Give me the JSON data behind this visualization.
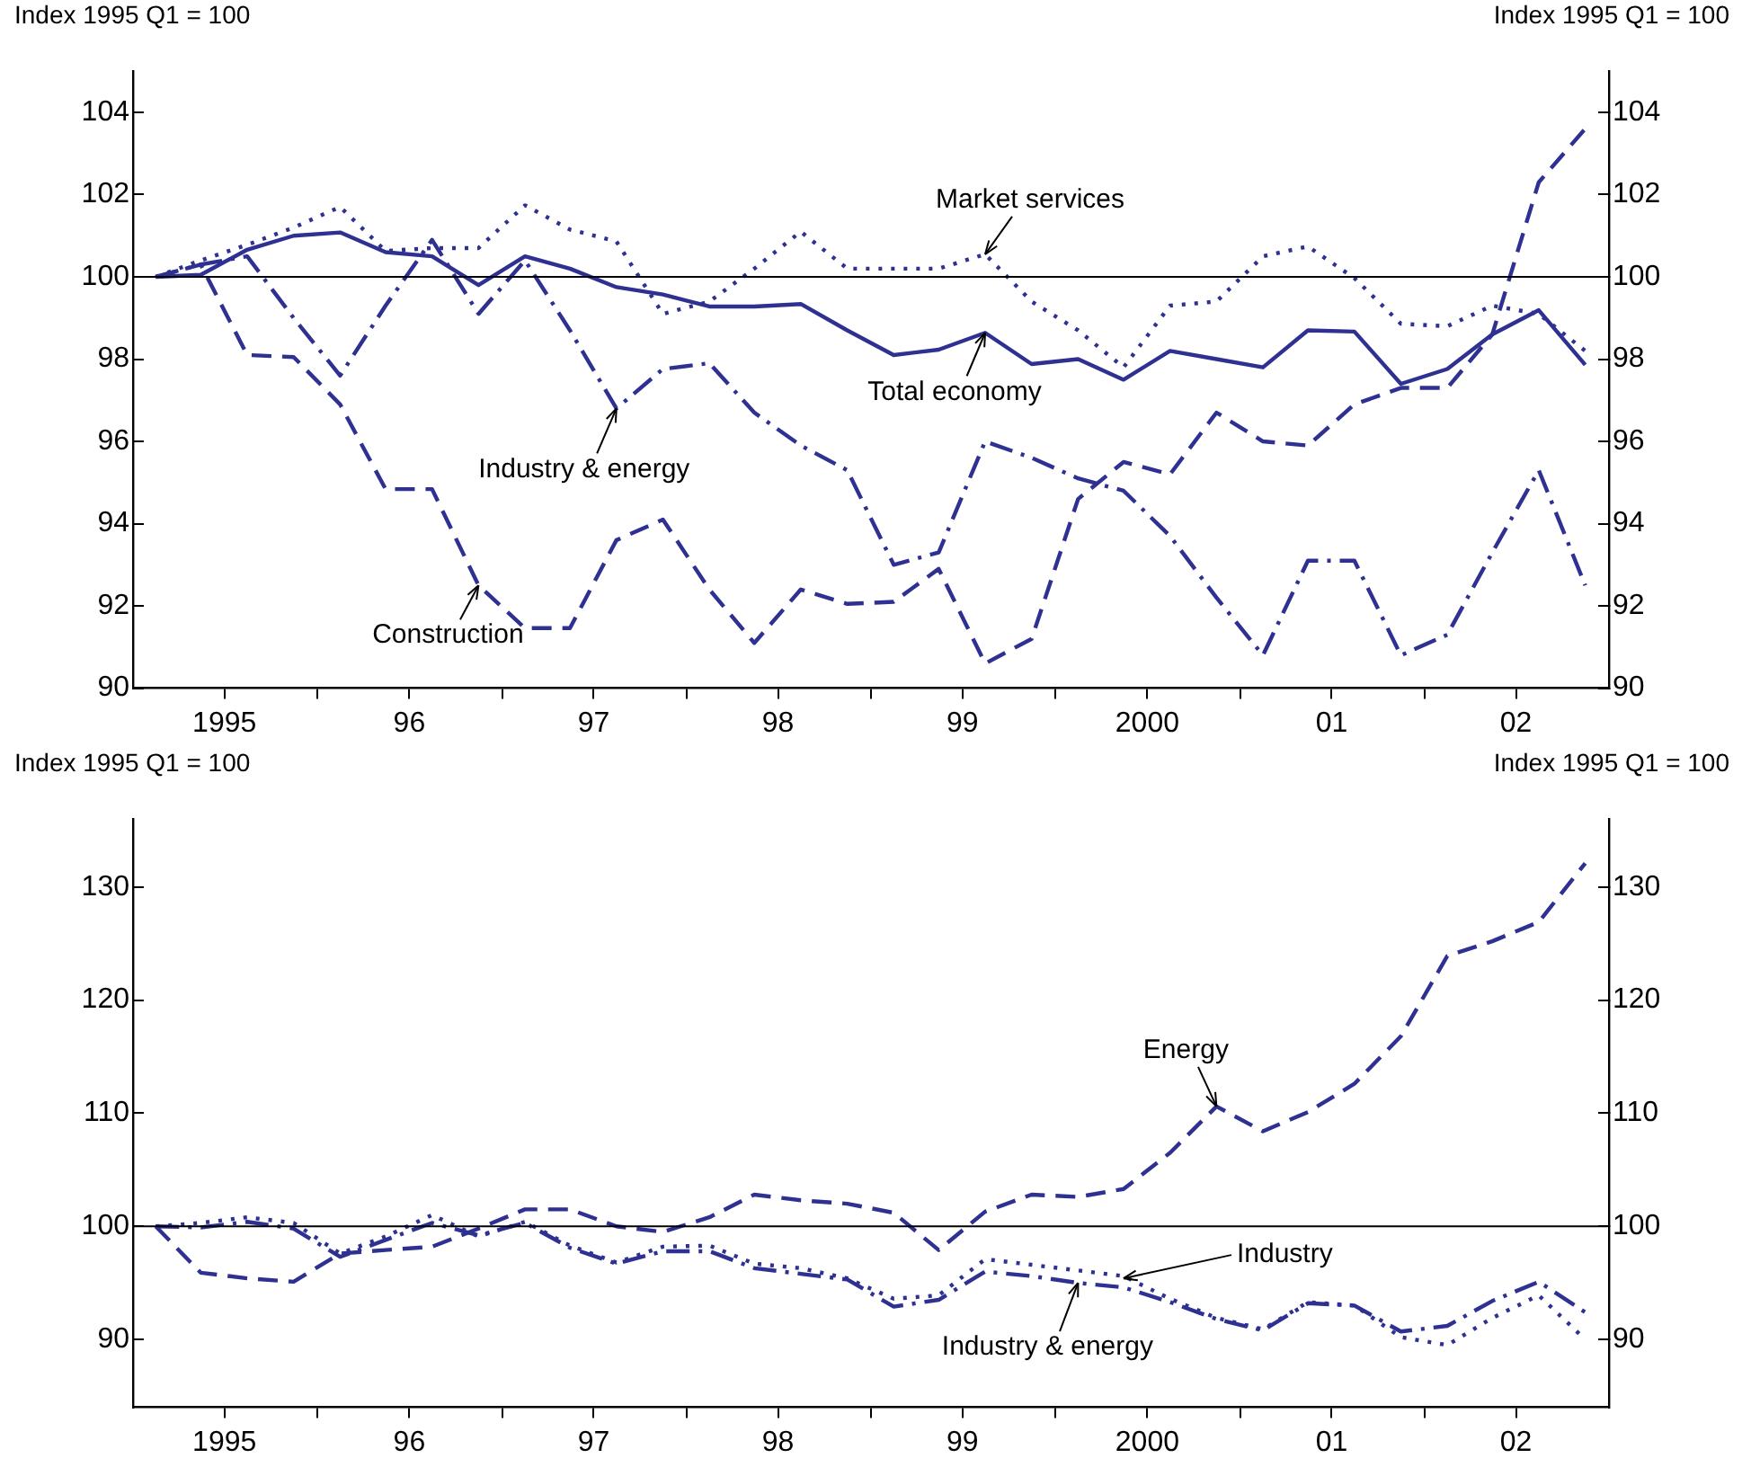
{
  "chart_data": [
    {
      "type": "line",
      "ylabel": "Index 1995 Q1 = 100",
      "y2label": "Index 1995 Q1 = 100",
      "x": [
        "1995-02-15",
        "1995-05-15",
        "1995-08-15",
        "1995-11-15",
        "1996-02-15",
        "1996-05-15",
        "1996-08-15",
        "1996-11-15",
        "1997-02-15",
        "1997-05-15",
        "1997-08-15",
        "1997-11-15",
        "1998-02-15",
        "1998-05-15",
        "1998-08-15",
        "1998-11-15",
        "1999-02-15",
        "1999-05-15",
        "1999-08-15",
        "1999-11-15",
        "2000-02-15",
        "2000-05-15",
        "2000-08-15",
        "2000-11-15",
        "2001-02-15",
        "2001-05-15",
        "2001-08-15",
        "2001-11-15",
        "2002-02-15",
        "2002-05-15",
        "2002-08-15",
        "2002-11-15"
      ],
      "series": [
        {
          "color": "#2e3192",
          "line_style": "solid",
          "values": [
            100,
            100.05,
            100.66,
            101.0,
            101.08,
            100.6,
            100.5,
            99.8,
            100.5,
            100.2,
            99.75,
            99.57,
            99.28,
            99.28,
            99.34,
            98.7,
            98.1,
            98.23,
            98.64,
            97.88,
            98.0,
            97.5,
            98.2,
            98.0,
            97.8,
            98.7,
            98.67,
            97.4,
            97.76,
            98.6,
            99.19,
            97.86
          ]
        },
        {
          "color": "#2e3192",
          "line_style": "dotted",
          "values": [
            100,
            100.4,
            100.78,
            101.2,
            101.7,
            100.63,
            100.7,
            100.7,
            101.74,
            101.15,
            100.86,
            99.1,
            99.4,
            100.2,
            101.1,
            100.2,
            100.2,
            100.2,
            100.55,
            99.4,
            98.7,
            97.8,
            99.3,
            99.4,
            100.5,
            100.74,
            99.97,
            98.86,
            98.8,
            99.3,
            99.1,
            98.2
          ]
        },
        {
          "color": "#2e3192",
          "line_style": "dashdot",
          "values": [
            100,
            100.3,
            100.5,
            99.0,
            97.6,
            99.3,
            100.9,
            99.1,
            100.4,
            98.7,
            96.8,
            97.76,
            97.9,
            96.7,
            95.9,
            95.3,
            93.0,
            93.3,
            96.0,
            95.6,
            95.1,
            94.8,
            93.7,
            92.2,
            90.8,
            93.1,
            93.1,
            90.8,
            91.3,
            93.3,
            95.3,
            92.5
          ]
        },
        {
          "color": "#2e3192",
          "line_style": "dashed",
          "values": [
            100,
            100.3,
            98.1,
            98.05,
            96.9,
            94.84,
            94.84,
            92.5,
            91.46,
            91.46,
            93.6,
            94.1,
            92.4,
            91.1,
            92.4,
            92.05,
            92.1,
            92.9,
            90.6,
            91.2,
            94.6,
            95.5,
            95.2,
            96.7,
            96.0,
            95.9,
            96.9,
            97.3,
            97.3,
            98.6,
            102.3,
            103.6
          ]
        }
      ],
      "xlim": [
        "1995-01-01",
        "2003-01-01"
      ],
      "xticks": [
        {
          "value": "1995-07-01",
          "label": "1995"
        },
        {
          "value": "1996-01-01",
          "label": null
        },
        {
          "value": "1996-07-01",
          "label": "96"
        },
        {
          "value": "1997-01-01",
          "label": null
        },
        {
          "value": "1997-07-01",
          "label": "97"
        },
        {
          "value": "1998-01-01",
          "label": null
        },
        {
          "value": "1998-07-01",
          "label": "98"
        },
        {
          "value": "1999-01-01",
          "label": null
        },
        {
          "value": "1999-07-01",
          "label": "99"
        },
        {
          "value": "2000-01-01",
          "label": null
        },
        {
          "value": "2000-07-01",
          "label": "2000"
        },
        {
          "value": "2001-01-01",
          "label": null
        },
        {
          "value": "2001-07-01",
          "label": "01"
        },
        {
          "value": "2002-01-01",
          "label": null
        },
        {
          "value": "2002-07-01",
          "label": "02"
        }
      ],
      "ylim": [
        90,
        105
      ],
      "yticks": [
        90,
        92,
        94,
        96,
        98,
        100,
        102,
        104
      ],
      "y2lim": [
        90,
        105
      ],
      "y2ticks": [
        90,
        92,
        94,
        96,
        98,
        100,
        102,
        104
      ],
      "ref_lines": [
        {
          "axis": "y",
          "value": 100,
          "color": "#000000"
        }
      ],
      "annotations": [
        {
          "text": "Market services",
          "x": "1999-08-15",
          "y": 100.55
        },
        {
          "text": "Total economy",
          "x": "1999-08-15",
          "y": 98.64
        },
        {
          "text": "Industry & energy",
          "x": "1997-08-15",
          "y": 96.8
        },
        {
          "text": "Construction",
          "x": "1996-11-15",
          "y": 92.5
        }
      ]
    },
    {
      "type": "line",
      "ylabel": "Index 1995 Q1 = 100",
      "y2label": "Index 1995 Q1 = 100",
      "x": [
        "1995-02-15",
        "1995-05-15",
        "1995-08-15",
        "1995-11-15",
        "1996-02-15",
        "1996-05-15",
        "1996-08-15",
        "1996-11-15",
        "1997-02-15",
        "1997-05-15",
        "1997-08-15",
        "1997-11-15",
        "1998-02-15",
        "1998-05-15",
        "1998-08-15",
        "1998-11-15",
        "1999-02-15",
        "1999-05-15",
        "1999-08-15",
        "1999-11-15",
        "2000-02-15",
        "2000-05-15",
        "2000-08-15",
        "2000-11-15",
        "2001-02-15",
        "2001-05-15",
        "2001-08-15",
        "2001-11-15",
        "2002-02-15",
        "2002-05-15",
        "2002-08-15",
        "2002-11-15"
      ],
      "series": [
        {
          "color": "#2e3192",
          "line_style": "dashed",
          "values": [
            100,
            95.9,
            95.4,
            95.1,
            97.6,
            97.9,
            98.2,
            99.8,
            101.5,
            101.5,
            100,
            99.5,
            100.8,
            102.8,
            102.3,
            102.0,
            101.2,
            97.9,
            101.3,
            102.8,
            102.6,
            103.3,
            106.5,
            110.6,
            108.4,
            110.1,
            112.6,
            116.8,
            123.9,
            125.2,
            126.9,
            132.1
          ]
        },
        {
          "color": "#2e3192",
          "line_style": "dotted",
          "values": [
            100,
            100.3,
            100.8,
            100.3,
            97.6,
            99.1,
            101.0,
            99.1,
            100.4,
            98.3,
            96.8,
            98.2,
            98.3,
            96.7,
            96.3,
            95.4,
            93.6,
            93.9,
            97.1,
            96.6,
            96.1,
            95.6,
            93.6,
            91.9,
            90.9,
            93.3,
            93.0,
            90.2,
            89.5,
            91.9,
            93.9,
            90.0
          ]
        },
        {
          "color": "#2e3192",
          "line_style": "dashdot",
          "values": [
            100,
            99.9,
            100.4,
            99.8,
            97.3,
            98.8,
            100.3,
            99.2,
            100.3,
            98.1,
            96.7,
            97.8,
            97.8,
            96.3,
            95.8,
            95.3,
            92.9,
            93.5,
            96.0,
            95.6,
            95.0,
            94.6,
            93.3,
            91.8,
            90.8,
            93.2,
            93.0,
            90.7,
            91.2,
            93.4,
            95.1,
            92.4
          ]
        }
      ],
      "xlim": [
        "1995-01-01",
        "2003-01-01"
      ],
      "xticks": [
        {
          "value": "1995-07-01",
          "label": "1995"
        },
        {
          "value": "1996-01-01",
          "label": null
        },
        {
          "value": "1996-07-01",
          "label": "96"
        },
        {
          "value": "1997-01-01",
          "label": null
        },
        {
          "value": "1997-07-01",
          "label": "97"
        },
        {
          "value": "1998-01-01",
          "label": null
        },
        {
          "value": "1998-07-01",
          "label": "98"
        },
        {
          "value": "1999-01-01",
          "label": null
        },
        {
          "value": "1999-07-01",
          "label": "99"
        },
        {
          "value": "2000-01-01",
          "label": null
        },
        {
          "value": "2000-07-01",
          "label": "2000"
        },
        {
          "value": "2001-01-01",
          "label": null
        },
        {
          "value": "2001-07-01",
          "label": "01"
        },
        {
          "value": "2002-01-01",
          "label": null
        },
        {
          "value": "2002-07-01",
          "label": "02"
        }
      ],
      "ylim": [
        84,
        136
      ],
      "yticks": [
        90,
        100,
        110,
        120,
        130
      ],
      "y2lim": [
        84,
        136
      ],
      "y2ticks": [
        90,
        100,
        110,
        120,
        130
      ],
      "ref_lines": [
        {
          "axis": "y",
          "value": 100,
          "color": "#000000"
        }
      ],
      "annotations": [
        {
          "text": "Energy",
          "x": "2000-11-15",
          "y": 110.6
        },
        {
          "text": "Industry",
          "x": "2000-05-15",
          "y": 95.4
        },
        {
          "text": "Industry & energy",
          "x": "2000-02-15",
          "y": 95.0
        }
      ]
    }
  ]
}
